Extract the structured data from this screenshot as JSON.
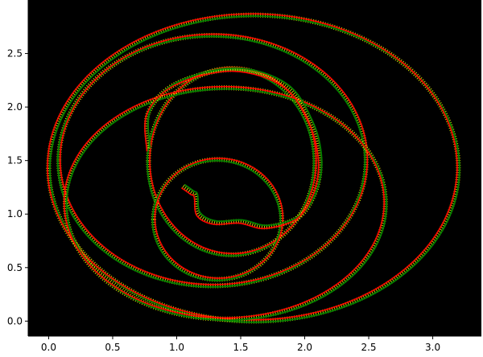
{
  "chart_data": {
    "type": "line",
    "title": "",
    "xlabel": "",
    "ylabel": "",
    "xlim": [
      -0.16,
      3.38
    ],
    "ylim": [
      -0.14,
      3.0
    ],
    "grid": false,
    "background": "#000000",
    "x_ticks": [
      "0.0",
      "0.5",
      "1.0",
      "1.5",
      "2.0",
      "2.5",
      "3.0"
    ],
    "y_ticks": [
      "0.0",
      "0.5",
      "1.0",
      "1.5",
      "2.0",
      "2.5"
    ],
    "colors": {
      "series_a": "#ff0000",
      "series_b": "#008000",
      "connectors": "#ffff00"
    },
    "trajectory_start": [
      [
        1.05,
        1.26
      ],
      [
        1.12,
        1.2
      ],
      [
        1.15,
        1.17
      ],
      [
        1.17,
        1.0
      ],
      [
        1.3,
        0.92
      ],
      [
        1.5,
        0.93
      ],
      [
        1.7,
        0.88
      ],
      [
        1.95,
        0.97
      ],
      [
        2.08,
        1.2
      ],
      [
        2.12,
        1.5
      ],
      [
        2.05,
        1.85
      ],
      [
        1.85,
        2.2
      ],
      [
        1.45,
        2.35
      ],
      [
        1.0,
        2.22
      ],
      [
        0.78,
        1.95
      ],
      [
        0.78,
        1.6
      ]
    ],
    "loops": [
      {
        "center": [
          1.43,
          1.49
        ],
        "rx": 0.65,
        "ry": 0.87
      },
      {
        "center": [
          1.6,
          1.43
        ],
        "rx": 1.6,
        "ry": 1.43
      },
      {
        "center": [
          1.28,
          1.5
        ],
        "rx": 1.2,
        "ry": 1.17
      },
      {
        "center": [
          1.38,
          1.1
        ],
        "rx": 1.25,
        "ry": 1.08
      },
      {
        "center": [
          1.32,
          0.95
        ],
        "rx": 0.5,
        "ry": 0.56
      }
    ]
  }
}
